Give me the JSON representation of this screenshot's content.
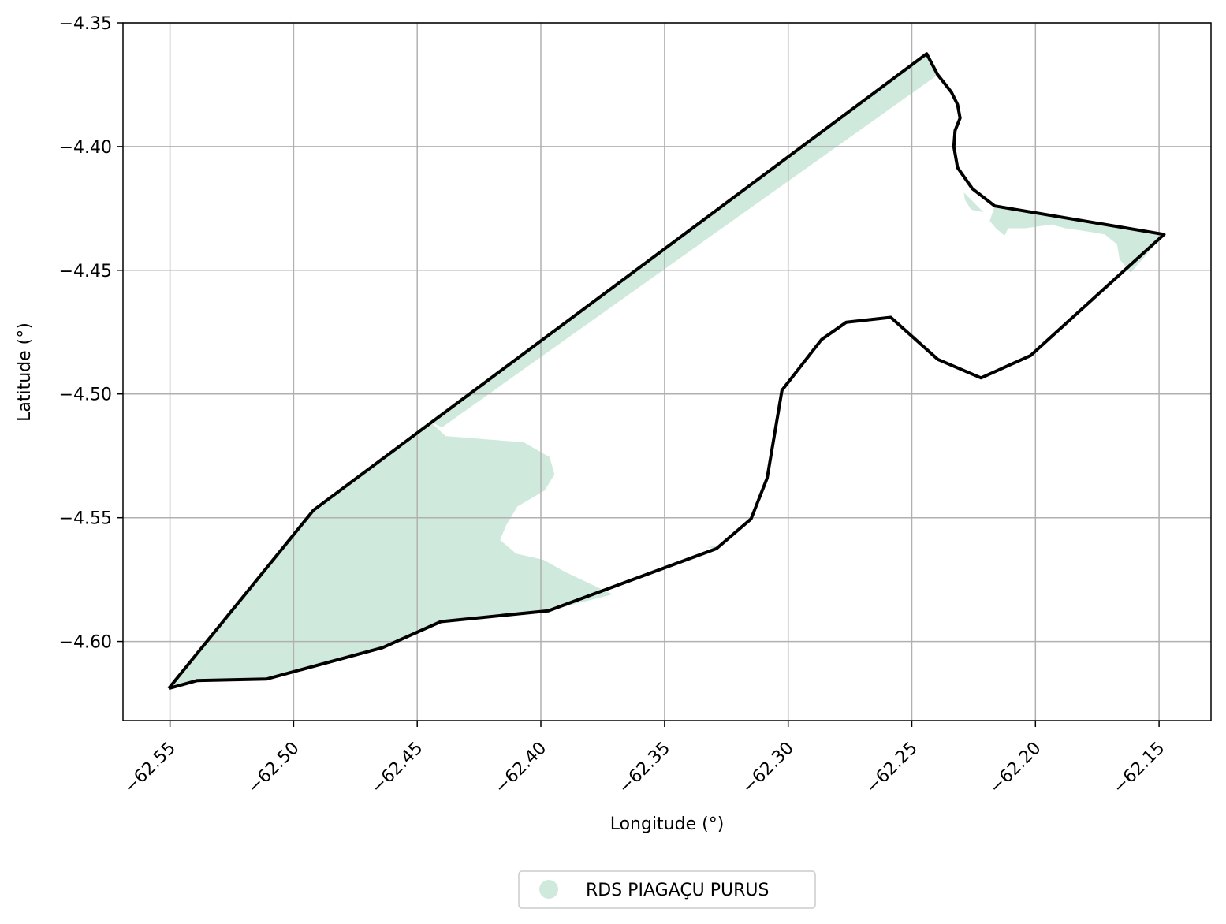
{
  "chart_data": {
    "type": "map",
    "xlabel": "Longitude (°)",
    "ylabel": "Latitude (°)",
    "xlim": [
      -62.569,
      -62.129
    ],
    "ylim": [
      -4.632,
      -4.35
    ],
    "grid": true,
    "x_ticks": [
      -62.55,
      -62.5,
      -62.45,
      -62.4,
      -62.35,
      -62.3,
      -62.25,
      -62.2,
      -62.15
    ],
    "x_tick_labels": [
      "−62.55",
      "−62.50",
      "−62.45",
      "−62.40",
      "−62.35",
      "−62.30",
      "−62.25",
      "−62.20",
      "−62.15"
    ],
    "y_ticks": [
      -4.35,
      -4.4,
      -4.45,
      -4.5,
      -4.55,
      -4.6
    ],
    "y_tick_labels": [
      "−4.35",
      "−4.40",
      "−4.45",
      "−4.50",
      "−4.55",
      "−4.60"
    ],
    "legend": {
      "placement": "bottom-center",
      "entries": [
        {
          "label": "RDS PIAGAÇU PURUS",
          "color": "#cfeadd"
        }
      ]
    },
    "colors": {
      "fill": "#cfeadd",
      "boundary": "#000000",
      "grid": "#b0b0b0"
    },
    "boundary": [
      [
        -62.5505,
        -4.619
      ],
      [
        -62.539,
        -4.6158
      ],
      [
        -62.511,
        -4.6152
      ],
      [
        -62.464,
        -4.6025
      ],
      [
        -62.4405,
        -4.592
      ],
      [
        -62.397,
        -4.5876
      ],
      [
        -62.329,
        -4.5625
      ],
      [
        -62.315,
        -4.5505
      ],
      [
        -62.3085,
        -4.534
      ],
      [
        -62.3025,
        -4.4985
      ],
      [
        -62.2865,
        -4.478
      ],
      [
        -62.2765,
        -4.471
      ],
      [
        -62.2585,
        -4.469
      ],
      [
        -62.2395,
        -4.486
      ],
      [
        -62.222,
        -4.4935
      ],
      [
        -62.202,
        -4.4845
      ],
      [
        -62.148,
        -4.4355
      ],
      [
        -62.2165,
        -4.424
      ],
      [
        -62.2255,
        -4.417
      ],
      [
        -62.2315,
        -4.4085
      ],
      [
        -62.233,
        -4.4
      ],
      [
        -62.2325,
        -4.3935
      ],
      [
        -62.2305,
        -4.3885
      ],
      [
        -62.2315,
        -4.383
      ],
      [
        -62.234,
        -4.378
      ],
      [
        -62.2395,
        -4.371
      ],
      [
        -62.244,
        -4.3625
      ],
      [
        -62.492,
        -4.547
      ],
      [
        -62.5505,
        -4.619
      ]
    ],
    "filled_regions": [
      [
        [
          -62.5505,
          -4.619
        ],
        [
          -62.492,
          -4.547
        ],
        [
          -62.445,
          -4.511
        ],
        [
          -62.4385,
          -4.517
        ],
        [
          -62.42,
          -4.5185
        ],
        [
          -62.407,
          -4.5195
        ],
        [
          -62.3965,
          -4.5255
        ],
        [
          -62.3945,
          -4.5325
        ],
        [
          -62.3985,
          -4.539
        ],
        [
          -62.4095,
          -4.5455
        ],
        [
          -62.414,
          -4.553
        ],
        [
          -62.4165,
          -4.559
        ],
        [
          -62.41,
          -4.5645
        ],
        [
          -62.399,
          -4.567
        ],
        [
          -62.39,
          -4.572
        ],
        [
          -62.371,
          -4.581
        ],
        [
          -62.397,
          -4.5876
        ],
        [
          -62.4405,
          -4.592
        ],
        [
          -62.464,
          -4.6025
        ],
        [
          -62.511,
          -4.6152
        ],
        [
          -62.539,
          -4.6158
        ],
        [
          -62.5505,
          -4.619
        ]
      ],
      [
        [
          -62.445,
          -4.511
        ],
        [
          -62.244,
          -4.3625
        ],
        [
          -62.2395,
          -4.371
        ],
        [
          -62.44,
          -4.5135
        ],
        [
          -62.445,
          -4.511
        ]
      ],
      [
        [
          -62.333,
          -4.562
        ],
        [
          -62.3275,
          -4.561
        ],
        [
          -62.329,
          -4.5625
        ],
        [
          -62.333,
          -4.562
        ]
      ],
      [
        [
          -62.2165,
          -4.424
        ],
        [
          -62.148,
          -4.4355
        ],
        [
          -62.1615,
          -4.451
        ],
        [
          -62.166,
          -4.4455
        ],
        [
          -62.167,
          -4.4395
        ],
        [
          -62.172,
          -4.4355
        ],
        [
          -62.181,
          -4.434
        ],
        [
          -62.188,
          -4.433
        ],
        [
          -62.1935,
          -4.4315
        ],
        [
          -62.204,
          -4.433
        ],
        [
          -62.211,
          -4.433
        ],
        [
          -62.2125,
          -4.436
        ],
        [
          -62.216,
          -4.433
        ],
        [
          -62.2185,
          -4.43
        ],
        [
          -62.2165,
          -4.424
        ]
      ],
      [
        [
          -62.229,
          -4.4185
        ],
        [
          -62.221,
          -4.4265
        ],
        [
          -62.226,
          -4.4255
        ],
        [
          -62.2285,
          -4.4215
        ],
        [
          -62.229,
          -4.4185
        ]
      ]
    ]
  }
}
